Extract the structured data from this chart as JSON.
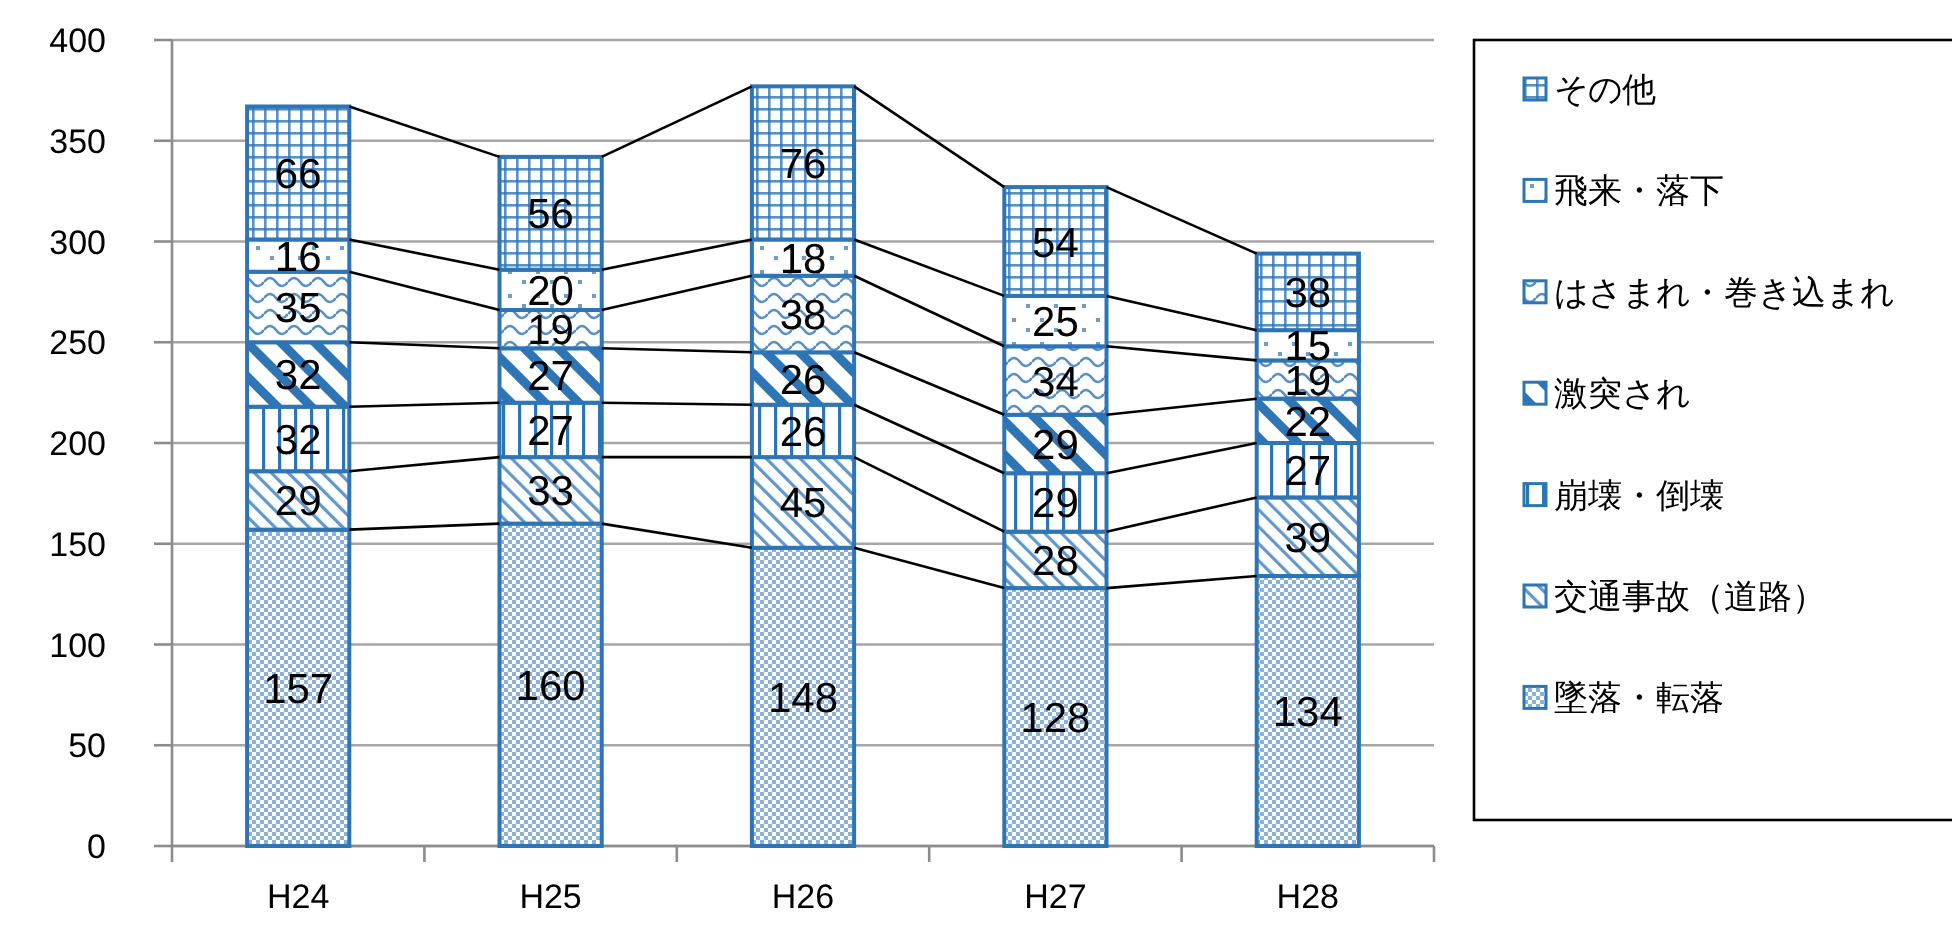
{
  "chart_data": {
    "type": "bar",
    "stacked": true,
    "categories": [
      "H24",
      "H25",
      "H26",
      "H27",
      "H28"
    ],
    "series": [
      {
        "name": "墜落・転落",
        "color": "#2e75b6",
        "values": [
          157,
          160,
          148,
          128,
          134
        ]
      },
      {
        "name": "交通事故（道路）",
        "color": "#2e75b6",
        "values": [
          29,
          33,
          45,
          28,
          39
        ]
      },
      {
        "name": "崩壊・倒壊",
        "color": "#2e75b6",
        "values": [
          32,
          27,
          26,
          29,
          27
        ]
      },
      {
        "name": "激突され",
        "color": "#2e75b6",
        "values": [
          32,
          27,
          26,
          29,
          22
        ]
      },
      {
        "name": "はさまれ・巻き込まれ",
        "color": "#2e75b6",
        "values": [
          35,
          19,
          38,
          34,
          19
        ]
      },
      {
        "name": "飛来・落下",
        "color": "#2e75b6",
        "values": [
          16,
          20,
          18,
          25,
          15
        ]
      },
      {
        "name": "その他",
        "color": "#2e75b6",
        "values": [
          66,
          56,
          76,
          54,
          38
        ]
      }
    ],
    "ylim": [
      0,
      400
    ],
    "yticks": [
      0,
      50,
      100,
      150,
      200,
      250,
      300,
      350,
      400
    ],
    "grid": "y",
    "legend": "right",
    "data_labels": true
  }
}
